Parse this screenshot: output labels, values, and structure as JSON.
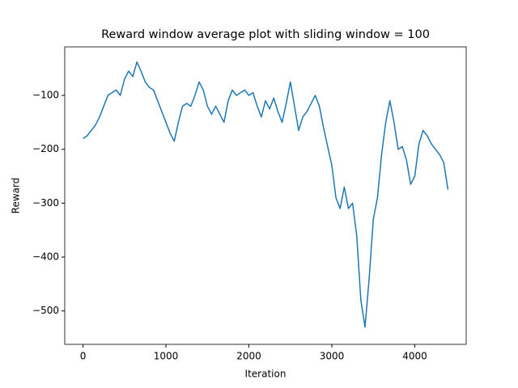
{
  "chart_data": {
    "type": "line",
    "title": "Reward window average plot with sliding window = 100",
    "x_label": "Iteration",
    "y_label": "Reward",
    "color": "#1f77b4",
    "x": [
      0,
      50,
      100,
      150,
      200,
      250,
      300,
      350,
      400,
      450,
      500,
      550,
      600,
      650,
      700,
      750,
      800,
      850,
      900,
      950,
      1000,
      1050,
      1100,
      1150,
      1200,
      1250,
      1300,
      1350,
      1400,
      1450,
      1500,
      1550,
      1600,
      1650,
      1700,
      1750,
      1800,
      1850,
      1900,
      1950,
      2000,
      2050,
      2100,
      2150,
      2200,
      2250,
      2300,
      2350,
      2400,
      2450,
      2500,
      2550,
      2600,
      2650,
      2700,
      2750,
      2800,
      2850,
      2900,
      2950,
      3000,
      3050,
      3100,
      3150,
      3200,
      3250,
      3300,
      3350,
      3400,
      3450,
      3500,
      3550,
      3600,
      3650,
      3700,
      3750,
      3800,
      3850,
      3900,
      3950,
      4000,
      4050,
      4100,
      4150,
      4200,
      4250,
      4300,
      4350,
      4400
    ],
    "values": [
      -180,
      -175,
      -165,
      -155,
      -140,
      -120,
      -100,
      -95,
      -90,
      -100,
      -70,
      -55,
      -65,
      -38,
      -55,
      -75,
      -85,
      -90,
      -110,
      -130,
      -150,
      -170,
      -185,
      -150,
      -120,
      -115,
      -120,
      -100,
      -75,
      -90,
      -120,
      -135,
      -120,
      -135,
      -150,
      -110,
      -90,
      -100,
      -95,
      -90,
      -100,
      -95,
      -120,
      -140,
      -110,
      -125,
      -105,
      -130,
      -150,
      -115,
      -75,
      -120,
      -165,
      -140,
      -130,
      -115,
      -100,
      -120,
      -160,
      -195,
      -230,
      -290,
      -310,
      -270,
      -310,
      -300,
      -360,
      -480,
      -530,
      -440,
      -330,
      -290,
      -210,
      -150,
      -110,
      -150,
      -200,
      -195,
      -220,
      -265,
      -250,
      -190,
      -165,
      -175,
      -190,
      -200,
      -210,
      -225,
      -275
    ],
    "xlim": [
      -220,
      4620
    ],
    "xticks": [
      0,
      1000,
      2000,
      3000,
      4000
    ],
    "ylim": [
      -562,
      -10
    ],
    "yticks": [
      {
        "value": -500,
        "label": "−500"
      },
      {
        "value": -400,
        "label": "−400"
      },
      {
        "value": -300,
        "label": "−300"
      },
      {
        "value": -200,
        "label": "−200"
      },
      {
        "value": -100,
        "label": "−100"
      }
    ]
  }
}
